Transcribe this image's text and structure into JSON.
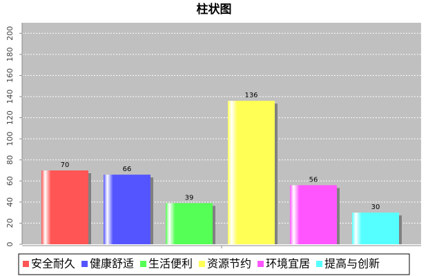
{
  "chart_data": {
    "type": "bar",
    "title": "柱状图",
    "categories": [
      null
    ],
    "series": [
      {
        "name": "安全耐久",
        "color": "#ff5555",
        "values": [
          70
        ]
      },
      {
        "name": "健康舒适",
        "color": "#5555ff",
        "values": [
          66
        ]
      },
      {
        "name": "生活便利",
        "color": "#55ff55",
        "values": [
          39
        ]
      },
      {
        "name": "资源节约",
        "color": "#ffff55",
        "values": [
          136
        ]
      },
      {
        "name": "环境宜居",
        "color": "#ff55ff",
        "values": [
          56
        ]
      },
      {
        "name": "提高与创新",
        "color": "#55ffff",
        "values": [
          30
        ]
      }
    ],
    "ylim": [
      0,
      210
    ],
    "yticks": [
      0,
      20,
      40,
      60,
      80,
      100,
      120,
      140,
      160,
      180,
      200
    ],
    "grid": true,
    "legend": "bottom"
  }
}
